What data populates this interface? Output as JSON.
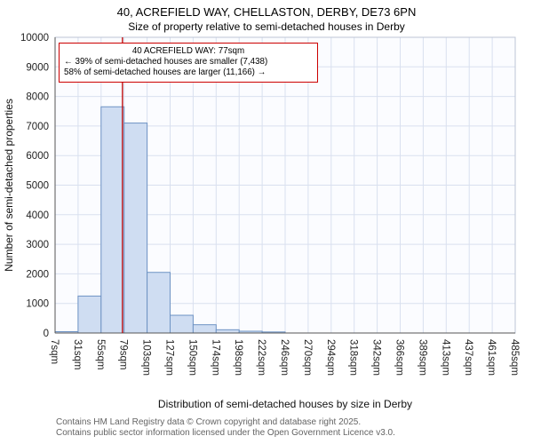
{
  "page": {
    "title": "40, ACREFIELD WAY, CHELLASTON, DERBY, DE73 6PN",
    "subtitle": "Size of property relative to semi-detached houses in Derby"
  },
  "chart_data": {
    "type": "bar",
    "title": "40, ACREFIELD WAY, CHELLASTON, DERBY, DE73 6PN",
    "subtitle": "Size of property relative to semi-detached houses in Derby",
    "xlabel": "Distribution of semi-detached houses by size in Derby",
    "ylabel": "Number of semi-detached properties",
    "ylim": [
      0,
      10000
    ],
    "grid": true,
    "ytick_labels": [
      "0",
      "1000",
      "2000",
      "3000",
      "4000",
      "5000",
      "6000",
      "7000",
      "8000",
      "9000",
      "10000"
    ],
    "xtick_labels": [
      "7sqm",
      "31sqm",
      "55sqm",
      "79sqm",
      "103sqm",
      "127sqm",
      "150sqm",
      "174sqm",
      "198sqm",
      "222sqm",
      "246sqm",
      "270sqm",
      "294sqm",
      "318sqm",
      "342sqm",
      "366sqm",
      "389sqm",
      "413sqm",
      "437sqm",
      "461sqm",
      "485sqm"
    ],
    "bin_edges_sqm": [
      7,
      31,
      55,
      79,
      103,
      127,
      150,
      174,
      198,
      222,
      246,
      270,
      294,
      318,
      342,
      366,
      389,
      413,
      437,
      461,
      485
    ],
    "values": [
      45,
      1250,
      7650,
      7100,
      2050,
      600,
      280,
      110,
      60,
      35,
      0,
      0,
      0,
      0,
      0,
      0,
      0,
      0,
      0,
      0
    ],
    "marker": {
      "value": 77,
      "label": "77sqm",
      "color": "#bb0000"
    },
    "colors": {
      "bar_fill": "#cfddf2",
      "bar_stroke": "#6e93c4",
      "grid": "#d9e0ef",
      "plot_bg": "#fbfcff",
      "spine_dark": "#555555",
      "spine_light": "#bcc5d6"
    }
  },
  "annotation": {
    "title": "40 ACREFIELD WAY: 77sqm",
    "smaller": "← 39% of semi-detached houses are smaller (7,438)",
    "larger": "58% of semi-detached houses are larger (11,166) →"
  },
  "footer": {
    "line1": "Contains HM Land Registry data © Crown copyright and database right 2025.",
    "line2": "Contains public sector information licensed under the Open Government Licence v3.0."
  }
}
